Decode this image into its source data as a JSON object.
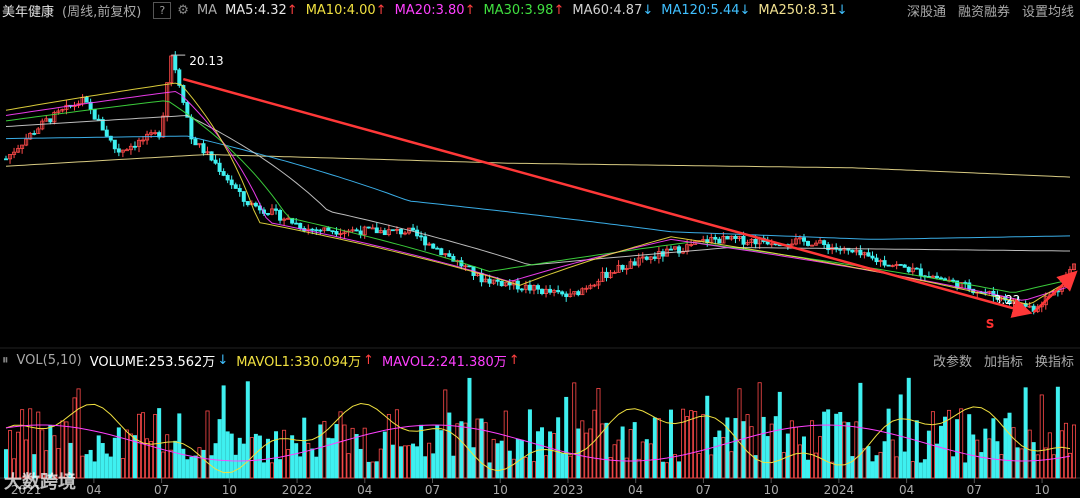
{
  "header": {
    "stock": "美年健康",
    "mode": "(周线,前复权)",
    "help": "?",
    "ma_label": "MA",
    "ma_items": [
      {
        "text": "MA5:4.32",
        "color": "#e8e8e8",
        "arrow": "↑"
      },
      {
        "text": "MA10:4.00",
        "color": "#f0e040",
        "arrow": "↑"
      },
      {
        "text": "MA20:3.80",
        "color": "#ff40ff",
        "arrow": "↑"
      },
      {
        "text": "MA30:3.98",
        "color": "#40e040",
        "arrow": "↑"
      },
      {
        "text": "MA60:4.87",
        "color": "#d0d0d0",
        "arrow": "↓"
      },
      {
        "text": "MA120:5.44",
        "color": "#40c0ff",
        "arrow": "↓"
      },
      {
        "text": "MA250:8.31",
        "color": "#f0e090",
        "arrow": "↓"
      }
    ],
    "links": [
      "深股通",
      "融资融券",
      "设置均线"
    ]
  },
  "volume_header": {
    "label": "VOL(5,10)",
    "volume": "VOLUME:253.562万",
    "mavol1": "MAVOL1:330.094万",
    "mavol2": "MAVOL2:241.380万",
    "links": [
      "改参数",
      "加指标",
      "换指标"
    ]
  },
  "annotations": {
    "high": "20.13",
    "low": "3.22",
    "marker": "S"
  },
  "watermark": "大数跨境",
  "chart_data": {
    "type": "candlestick",
    "x_ticks": [
      "2021",
      "04",
      "07",
      "10",
      "2022",
      "04",
      "07",
      "10",
      "2023",
      "04",
      "07",
      "10",
      "2024",
      "04",
      "07",
      "10"
    ],
    "price_anchors": [
      {
        "t": 0,
        "p": 9.5
      },
      {
        "t": 20,
        "p": 12.5
      },
      {
        "t": 38,
        "p": 14.5
      },
      {
        "t": 55,
        "p": 10.0
      },
      {
        "t": 77,
        "p": 11.5
      },
      {
        "t": 82,
        "p": 20.13
      },
      {
        "t": 92,
        "p": 11.0
      },
      {
        "t": 118,
        "p": 7.0
      },
      {
        "t": 150,
        "p": 5.7
      },
      {
        "t": 200,
        "p": 5.6
      },
      {
        "t": 235,
        "p": 4.0
      },
      {
        "t": 280,
        "p": 3.5
      },
      {
        "t": 300,
        "p": 4.2
      },
      {
        "t": 350,
        "p": 5.3
      },
      {
        "t": 400,
        "p": 5.2
      },
      {
        "t": 430,
        "p": 4.6
      },
      {
        "t": 480,
        "p": 3.7
      },
      {
        "t": 510,
        "p": 3.22
      },
      {
        "t": 522,
        "p": 3.7
      },
      {
        "t": 530,
        "p": 4.4
      }
    ],
    "moving_averages": [
      {
        "name": "MA250",
        "color": "#f0e090",
        "values": [
          {
            "t": 0,
            "p": 9.0
          },
          {
            "t": 100,
            "p": 9.8
          },
          {
            "t": 250,
            "p": 9.2
          },
          {
            "t": 420,
            "p": 8.9
          },
          {
            "t": 530,
            "p": 8.31
          }
        ]
      },
      {
        "name": "MA120",
        "color": "#40c0ff",
        "values": [
          {
            "t": 0,
            "p": 11.0
          },
          {
            "t": 90,
            "p": 11.2
          },
          {
            "t": 200,
            "p": 7.0
          },
          {
            "t": 330,
            "p": 5.6
          },
          {
            "t": 430,
            "p": 5.3
          },
          {
            "t": 530,
            "p": 5.44
          }
        ]
      },
      {
        "name": "MA60",
        "color": "#d0d0d0",
        "values": [
          {
            "t": 0,
            "p": 12.0
          },
          {
            "t": 90,
            "p": 13.0
          },
          {
            "t": 160,
            "p": 6.5
          },
          {
            "t": 260,
            "p": 4.4
          },
          {
            "t": 360,
            "p": 5.0
          },
          {
            "t": 530,
            "p": 4.87
          }
        ]
      },
      {
        "name": "MA30",
        "color": "#40e040",
        "values": [
          {
            "t": 0,
            "p": 12.5
          },
          {
            "t": 80,
            "p": 14.5
          },
          {
            "t": 140,
            "p": 6.2
          },
          {
            "t": 240,
            "p": 4.2
          },
          {
            "t": 340,
            "p": 5.2
          },
          {
            "t": 500,
            "p": 3.6
          },
          {
            "t": 530,
            "p": 3.98
          }
        ]
      },
      {
        "name": "MA20",
        "color": "#ff40ff",
        "values": [
          {
            "t": 0,
            "p": 13.0
          },
          {
            "t": 85,
            "p": 15.5
          },
          {
            "t": 130,
            "p": 6.0
          },
          {
            "t": 250,
            "p": 3.9
          },
          {
            "t": 330,
            "p": 5.3
          },
          {
            "t": 505,
            "p": 3.4
          },
          {
            "t": 530,
            "p": 3.8
          }
        ]
      },
      {
        "name": "MA10",
        "color": "#f0e040",
        "values": [
          {
            "t": 0,
            "p": 13.5
          },
          {
            "t": 86,
            "p": 16.5
          },
          {
            "t": 125,
            "p": 6.0
          },
          {
            "t": 255,
            "p": 3.8
          },
          {
            "t": 330,
            "p": 5.4
          },
          {
            "t": 508,
            "p": 3.3
          },
          {
            "t": 530,
            "p": 4.0
          }
        ]
      }
    ]
  }
}
